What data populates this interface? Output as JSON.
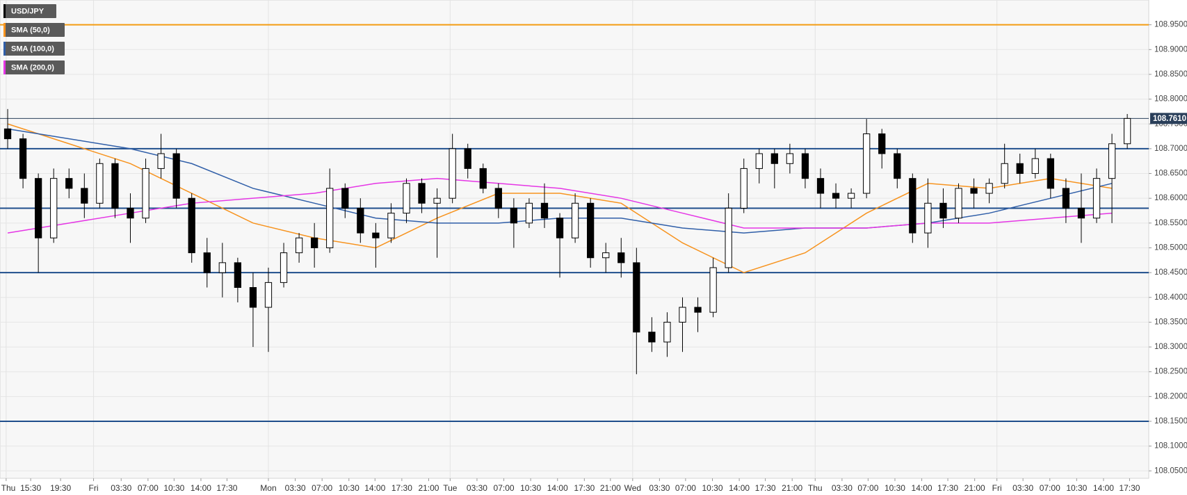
{
  "chart_data": {
    "type": "candlestick",
    "legend": [
      "USD/JPY",
      "SMA (50,0)",
      "SMA (100,0)",
      "SMA (200,0)"
    ],
    "up_color": "#ffffff",
    "down_color": "#000000",
    "ohlc": [
      [
        108.74,
        108.78,
        108.7,
        108.72
      ],
      [
        108.72,
        108.73,
        108.62,
        108.64
      ],
      [
        108.64,
        108.65,
        108.45,
        108.52
      ],
      [
        108.52,
        108.66,
        108.51,
        108.64
      ],
      [
        108.64,
        108.66,
        108.6,
        108.62
      ],
      [
        108.62,
        108.65,
        108.56,
        108.59
      ],
      [
        108.59,
        108.68,
        108.58,
        108.67
      ],
      [
        108.67,
        108.68,
        108.56,
        108.58
      ],
      [
        108.58,
        108.61,
        108.51,
        108.56
      ],
      [
        108.56,
        108.68,
        108.55,
        108.66
      ],
      [
        108.66,
        108.73,
        108.64,
        108.69
      ],
      [
        108.69,
        108.7,
        108.58,
        108.6
      ],
      [
        108.6,
        108.61,
        108.47,
        108.49
      ],
      [
        108.49,
        108.52,
        108.42,
        108.45
      ],
      [
        108.45,
        108.51,
        108.4,
        108.47
      ],
      [
        108.47,
        108.48,
        108.39,
        108.42
      ],
      [
        108.42,
        108.45,
        108.3,
        108.38
      ],
      [
        108.38,
        108.46,
        108.29,
        108.43
      ],
      [
        108.43,
        108.51,
        108.42,
        108.49
      ],
      [
        108.49,
        108.53,
        108.47,
        108.52
      ],
      [
        108.52,
        108.55,
        108.46,
        108.5
      ],
      [
        108.5,
        108.66,
        108.49,
        108.62
      ],
      [
        108.62,
        108.63,
        108.56,
        108.58
      ],
      [
        108.58,
        108.6,
        108.51,
        108.53
      ],
      [
        108.53,
        108.55,
        108.46,
        108.52
      ],
      [
        108.52,
        108.59,
        108.51,
        108.57
      ],
      [
        108.57,
        108.64,
        108.55,
        108.63
      ],
      [
        108.63,
        108.64,
        108.57,
        108.59
      ],
      [
        108.59,
        108.62,
        108.48,
        108.6
      ],
      [
        108.6,
        108.73,
        108.59,
        108.7
      ],
      [
        108.7,
        108.71,
        108.64,
        108.66
      ],
      [
        108.66,
        108.67,
        108.61,
        108.62
      ],
      [
        108.62,
        108.63,
        108.56,
        108.58
      ],
      [
        108.58,
        108.6,
        108.5,
        108.55
      ],
      [
        108.55,
        108.6,
        108.54,
        108.59
      ],
      [
        108.59,
        108.63,
        108.54,
        108.56
      ],
      [
        108.56,
        108.57,
        108.44,
        108.52
      ],
      [
        108.52,
        108.61,
        108.51,
        108.59
      ],
      [
        108.59,
        108.6,
        108.46,
        108.48
      ],
      [
        108.48,
        108.51,
        108.45,
        108.49
      ],
      [
        108.49,
        108.52,
        108.44,
        108.47
      ],
      [
        108.47,
        108.5,
        108.245,
        108.33
      ],
      [
        108.33,
        108.36,
        108.29,
        108.31
      ],
      [
        108.31,
        108.37,
        108.28,
        108.35
      ],
      [
        108.35,
        108.4,
        108.29,
        108.38
      ],
      [
        108.38,
        108.4,
        108.33,
        108.37
      ],
      [
        108.37,
        108.48,
        108.36,
        108.46
      ],
      [
        108.46,
        108.61,
        108.45,
        108.58
      ],
      [
        108.58,
        108.68,
        108.57,
        108.66
      ],
      [
        108.66,
        108.7,
        108.63,
        108.69
      ],
      [
        108.69,
        108.7,
        108.62,
        108.67
      ],
      [
        108.67,
        108.71,
        108.65,
        108.69
      ],
      [
        108.69,
        108.7,
        108.62,
        108.64
      ],
      [
        108.64,
        108.66,
        108.58,
        108.61
      ],
      [
        108.61,
        108.63,
        108.58,
        108.6
      ],
      [
        108.6,
        108.62,
        108.58,
        108.61
      ],
      [
        108.61,
        108.76,
        108.6,
        108.73
      ],
      [
        108.73,
        108.74,
        108.66,
        108.69
      ],
      [
        108.69,
        108.7,
        108.62,
        108.64
      ],
      [
        108.64,
        108.65,
        108.51,
        108.53
      ],
      [
        108.53,
        108.64,
        108.5,
        108.59
      ],
      [
        108.59,
        108.62,
        108.54,
        108.56
      ],
      [
        108.56,
        108.63,
        108.55,
        108.62
      ],
      [
        108.62,
        108.64,
        108.58,
        108.61
      ],
      [
        108.61,
        108.64,
        108.59,
        108.63
      ],
      [
        108.63,
        108.71,
        108.62,
        108.67
      ],
      [
        108.67,
        108.69,
        108.63,
        108.65
      ],
      [
        108.65,
        108.7,
        108.64,
        108.68
      ],
      [
        108.68,
        108.69,
        108.6,
        108.62
      ],
      [
        108.62,
        108.64,
        108.55,
        108.58
      ],
      [
        108.58,
        108.65,
        108.51,
        108.56
      ],
      [
        108.56,
        108.66,
        108.55,
        108.64
      ],
      [
        108.64,
        108.73,
        108.55,
        108.71
      ],
      [
        108.71,
        108.77,
        108.7,
        108.761
      ]
    ],
    "sma_x": [
      0,
      4,
      8,
      12,
      16,
      20,
      24,
      28,
      32,
      36,
      40,
      44,
      48,
      52,
      56,
      60,
      64,
      68,
      72
    ],
    "series": [
      {
        "name": "SMA (50,0)",
        "color": "#f7931e",
        "values": [
          108.75,
          108.71,
          108.67,
          108.61,
          108.55,
          108.52,
          108.5,
          108.56,
          108.61,
          108.61,
          108.59,
          108.51,
          108.45,
          108.49,
          108.57,
          108.63,
          108.62,
          108.64,
          108.62
        ]
      },
      {
        "name": "SMA (100,0)",
        "color": "#2f5ea8",
        "values": [
          108.74,
          108.72,
          108.7,
          108.67,
          108.62,
          108.59,
          108.56,
          108.55,
          108.55,
          108.56,
          108.56,
          108.54,
          108.53,
          108.54,
          108.54,
          108.55,
          108.57,
          108.6,
          108.63
        ]
      },
      {
        "name": "SMA (200,0)",
        "color": "#e535e5",
        "values": [
          108.53,
          108.55,
          108.57,
          108.59,
          108.6,
          108.61,
          108.63,
          108.64,
          108.63,
          108.62,
          108.6,
          108.57,
          108.54,
          108.54,
          108.54,
          108.55,
          108.55,
          108.56,
          108.57
        ]
      }
    ],
    "levels": [
      {
        "value": 108.95,
        "color": "#f39c12"
      },
      {
        "value": 108.7,
        "color": "#1f4e8c"
      },
      {
        "value": 108.58,
        "color": "#1f4e8c"
      },
      {
        "value": 108.45,
        "color": "#1f4e8c"
      },
      {
        "value": 108.15,
        "color": "#1f4e8c"
      }
    ],
    "last_price": {
      "value": 108.761,
      "label": "108.7610"
    },
    "xlim": [
      0,
      74.9
    ],
    "ylim": [
      108.035,
      109.0
    ],
    "yticks": [
      {
        "value": 108.05,
        "label": "108.0500"
      },
      {
        "value": 108.1,
        "label": "108.1000"
      },
      {
        "value": 108.15,
        "label": "108.1500"
      },
      {
        "value": 108.2,
        "label": "108.2000"
      },
      {
        "value": 108.25,
        "label": "108.2500"
      },
      {
        "value": 108.3,
        "label": "108.3000"
      },
      {
        "value": 108.35,
        "label": "108.3500"
      },
      {
        "value": 108.4,
        "label": "108.4000"
      },
      {
        "value": 108.45,
        "label": "108.4500"
      },
      {
        "value": 108.5,
        "label": "108.5000"
      },
      {
        "value": 108.55,
        "label": "108.5500"
      },
      {
        "value": 108.6,
        "label": "108.6000"
      },
      {
        "value": 108.65,
        "label": "108.6500"
      },
      {
        "value": 108.7,
        "label": "108.7000"
      },
      {
        "value": 108.75,
        "label": "108.7500"
      },
      {
        "value": 108.8,
        "label": "108.8000"
      },
      {
        "value": 108.85,
        "label": "108.8500"
      },
      {
        "value": 108.9,
        "label": "108.9000"
      },
      {
        "value": 108.95,
        "label": "108.9500"
      }
    ],
    "xticks": [
      {
        "value": 0.4,
        "label": "Thu"
      },
      {
        "value": 2.0,
        "label": "15:30"
      },
      {
        "value": 3.95,
        "label": "19:30"
      },
      {
        "value": 6.1,
        "label": "Fri"
      },
      {
        "value": 7.9,
        "label": "03:30"
      },
      {
        "value": 9.65,
        "label": "07:00"
      },
      {
        "value": 11.35,
        "label": "10:30"
      },
      {
        "value": 13.1,
        "label": "14:00"
      },
      {
        "value": 14.8,
        "label": "17:30"
      },
      {
        "value": 17.5,
        "label": "Mon"
      },
      {
        "value": 19.25,
        "label": "03:30"
      },
      {
        "value": 21.0,
        "label": "07:00"
      },
      {
        "value": 22.75,
        "label": "10:30"
      },
      {
        "value": 24.45,
        "label": "14:00"
      },
      {
        "value": 26.2,
        "label": "17:30"
      },
      {
        "value": 27.95,
        "label": "21:00"
      },
      {
        "value": 29.35,
        "label": "Tue"
      },
      {
        "value": 31.1,
        "label": "03:30"
      },
      {
        "value": 32.85,
        "label": "07:00"
      },
      {
        "value": 34.6,
        "label": "10:30"
      },
      {
        "value": 36.35,
        "label": "14:00"
      },
      {
        "value": 38.1,
        "label": "17:30"
      },
      {
        "value": 39.8,
        "label": "21:00"
      },
      {
        "value": 41.25,
        "label": "Wed"
      },
      {
        "value": 43.0,
        "label": "03:30"
      },
      {
        "value": 44.7,
        "label": "07:00"
      },
      {
        "value": 46.45,
        "label": "10:30"
      },
      {
        "value": 48.2,
        "label": "14:00"
      },
      {
        "value": 49.9,
        "label": "17:30"
      },
      {
        "value": 51.65,
        "label": "21:00"
      },
      {
        "value": 53.15,
        "label": "Thu"
      },
      {
        "value": 54.9,
        "label": "03:30"
      },
      {
        "value": 56.6,
        "label": "07:00"
      },
      {
        "value": 58.35,
        "label": "10:30"
      },
      {
        "value": 60.1,
        "label": "14:00"
      },
      {
        "value": 61.8,
        "label": "17:30"
      },
      {
        "value": 63.55,
        "label": "21:00"
      },
      {
        "value": 65.0,
        "label": "Fri"
      },
      {
        "value": 66.7,
        "label": "03:30"
      },
      {
        "value": 68.45,
        "label": "07:00"
      },
      {
        "value": 70.2,
        "label": "10:30"
      },
      {
        "value": 71.95,
        "label": "14:00"
      },
      {
        "value": 73.65,
        "label": "17:30"
      }
    ]
  }
}
